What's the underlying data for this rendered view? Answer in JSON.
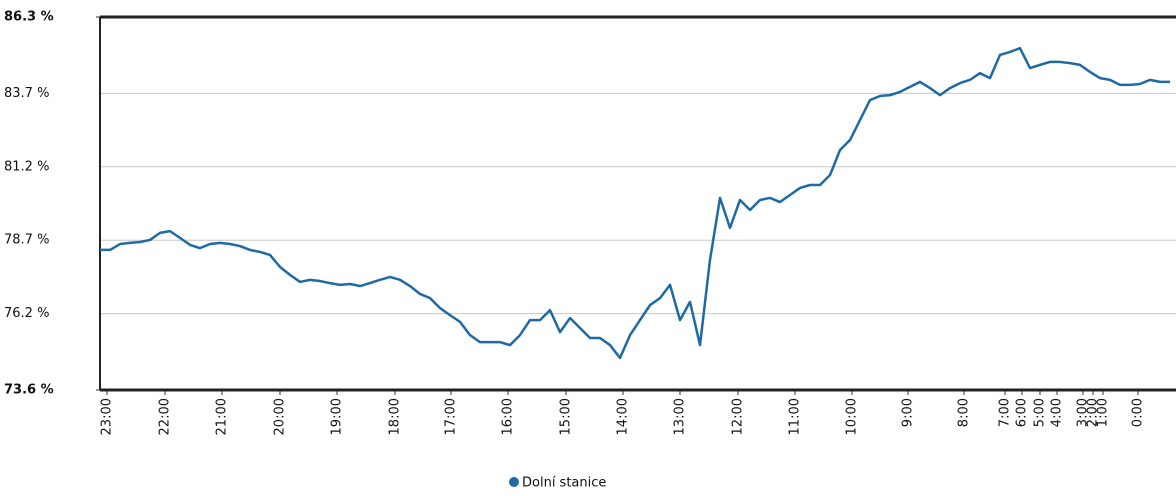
{
  "chart_data": {
    "type": "line",
    "x": [
      0,
      1,
      2,
      3,
      4,
      5,
      6,
      7,
      8,
      9,
      10,
      11,
      12,
      13,
      14,
      15,
      16,
      17,
      18,
      19,
      20,
      21,
      22,
      23,
      24,
      25,
      26,
      27,
      28,
      29,
      30,
      31,
      32,
      33,
      34,
      35,
      36,
      37,
      38,
      39,
      40,
      41,
      42,
      43,
      44,
      45,
      46,
      47,
      48,
      49,
      50,
      51,
      52,
      53,
      54,
      55,
      56,
      57,
      58,
      59,
      60,
      61,
      62,
      63,
      64,
      65,
      66,
      67,
      68,
      69,
      70,
      71,
      72,
      73,
      74,
      75,
      76,
      77,
      78,
      79,
      80,
      81,
      82,
      83,
      84,
      85,
      86,
      87,
      88,
      89,
      90,
      91,
      92,
      93,
      94,
      95,
      96,
      97,
      98,
      99,
      100,
      101,
      102,
      103,
      104,
      105,
      106,
      107
    ],
    "series": [
      {
        "name": "Dolní stanice",
        "color": "#1f6aa5",
        "values": [
          78.37,
          78.37,
          78.57,
          78.61,
          78.64,
          78.71,
          78.95,
          79.01,
          78.78,
          78.54,
          78.43,
          78.57,
          78.61,
          78.57,
          78.5,
          78.37,
          78.3,
          78.2,
          77.79,
          77.52,
          77.28,
          77.35,
          77.31,
          77.24,
          77.18,
          77.21,
          77.14,
          77.24,
          77.35,
          77.45,
          77.35,
          77.14,
          76.87,
          76.73,
          76.39,
          76.15,
          75.92,
          75.47,
          75.23,
          75.23,
          75.23,
          75.13,
          75.47,
          75.98,
          75.98,
          76.32,
          75.57,
          76.05,
          75.71,
          75.37,
          75.37,
          75.13,
          74.69,
          75.47,
          75.98,
          76.49,
          76.73,
          77.18,
          75.98,
          76.6,
          75.13,
          78.03,
          80.14,
          79.12,
          80.07,
          79.73,
          80.07,
          80.14,
          80.0,
          80.24,
          80.48,
          80.58,
          80.58,
          80.92,
          81.77,
          82.11,
          82.79,
          83.47,
          83.61,
          83.64,
          83.75,
          83.92,
          84.09,
          83.88,
          83.64,
          83.88,
          84.05,
          84.16,
          84.39,
          84.22,
          85.01,
          85.11,
          85.24,
          84.56,
          84.67,
          84.77,
          84.77,
          84.73,
          84.67,
          84.43,
          84.22,
          84.16,
          83.99,
          83.99,
          84.02,
          84.16,
          84.09,
          84.09
        ]
      }
    ],
    "xlim": [
      0,
      107.6
    ],
    "xticks": [
      {
        "value": 0.7,
        "label": "23:00"
      },
      {
        "value": 6.5,
        "label": "22:00"
      },
      {
        "value": 12.2,
        "label": "21:00"
      },
      {
        "value": 18,
        "label": "20:00"
      },
      {
        "value": 23.7,
        "label": "19:00"
      },
      {
        "value": 29.5,
        "label": "18:00"
      },
      {
        "value": 35.1,
        "label": "17:00"
      },
      {
        "value": 40.8,
        "label": "16:00"
      },
      {
        "value": 46.6,
        "label": "15:00"
      },
      {
        "value": 52.3,
        "label": "14:00"
      },
      {
        "value": 58,
        "label": "13:00"
      },
      {
        "value": 63.8,
        "label": "12:00"
      },
      {
        "value": 69.5,
        "label": "11:00"
      },
      {
        "value": 75.2,
        "label": "10:00"
      },
      {
        "value": 80.8,
        "label": "9:00"
      },
      {
        "value": 86.4,
        "label": "8:00"
      },
      {
        "value": 90.5,
        "label": "7:00"
      },
      {
        "value": 92.2,
        "label": "6:00"
      },
      {
        "value": 94,
        "label": "5:00"
      },
      {
        "value": 95.7,
        "label": "4:00"
      },
      {
        "value": 98.3,
        "label": "3:00"
      },
      {
        "value": 99.3,
        "label": "2:00"
      },
      {
        "value": 100.3,
        "label": "1:00"
      },
      {
        "value": 103.8,
        "label": "0:00"
      }
    ],
    "ylim": [
      73.6,
      86.3
    ],
    "yticks": [
      {
        "value": 73.6,
        "label": "73.6 %"
      },
      {
        "value": 76.2,
        "label": "76.2 %"
      },
      {
        "value": 78.7,
        "label": "78.7 %"
      },
      {
        "value": 81.2,
        "label": "81.2 %"
      },
      {
        "value": 83.7,
        "label": "83.7 %"
      },
      {
        "value": 86.3,
        "label": "86.3 %"
      }
    ],
    "grid": true,
    "legend": "bottom"
  }
}
